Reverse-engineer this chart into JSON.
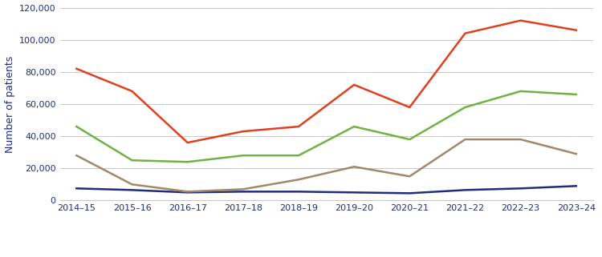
{
  "x_labels": [
    "2014–15",
    "2015–16",
    "2016–17",
    "2017–18",
    "2018–19",
    "2019–20",
    "2020–21",
    "2021–22",
    "2022–23",
    "2023–24"
  ],
  "category1": [
    7500,
    6500,
    5000,
    5500,
    5500,
    5000,
    4500,
    6500,
    7500,
    9000
  ],
  "category2": [
    46000,
    25000,
    24000,
    28000,
    28000,
    46000,
    38000,
    58000,
    68000,
    66000
  ],
  "category3": [
    28000,
    10000,
    5500,
    7000,
    13000,
    21000,
    15000,
    38000,
    38000,
    29000
  ],
  "total_long_waits": [
    82000,
    68000,
    36000,
    43000,
    46000,
    72000,
    58000,
    104000,
    112000,
    106000
  ],
  "colors": {
    "category1": "#1f2d7b",
    "category2": "#70b244",
    "category3": "#a08868",
    "total_long_waits": "#e04020"
  },
  "ylabel": "Number of patients",
  "ylim": [
    0,
    120000
  ],
  "yticks": [
    0,
    20000,
    40000,
    60000,
    80000,
    100000,
    120000
  ],
  "legend_text_color": "#1f2d7b",
  "axis_label_color": "#1f2d7b",
  "tick_label_color": "#1f2d7b",
  "background_color": "#ffffff",
  "grid_color": "#c8c8c8",
  "line_width": 1.8
}
